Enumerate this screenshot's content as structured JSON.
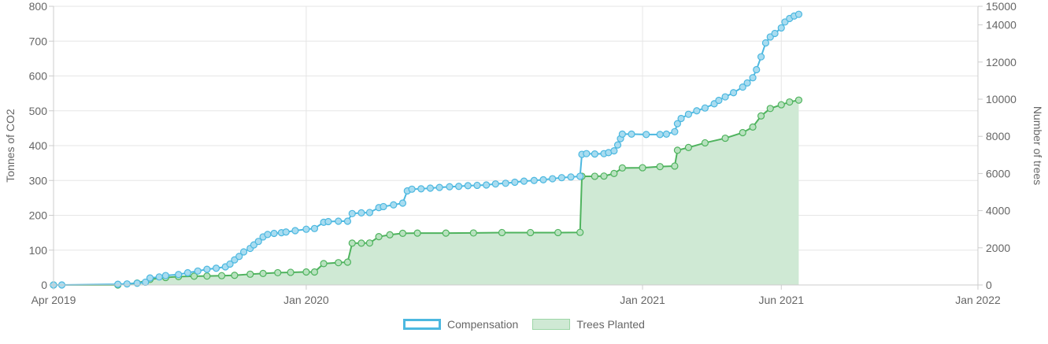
{
  "chart_data": {
    "type": "line",
    "y_left_label": "Tonnes of CO2",
    "y_right_label": "Number of trees",
    "y_left_lim": [
      0,
      800
    ],
    "y_left_ticks": [
      "0",
      "100",
      "200",
      "300",
      "400",
      "500",
      "600",
      "700",
      "800"
    ],
    "y_right_lim": [
      0,
      15000
    ],
    "y_right_ticks": [
      "0",
      "2000",
      "4000",
      "6000",
      "8000",
      "10000",
      "12000",
      "14000",
      "15000"
    ],
    "x_ticks": [
      "Apr 2019",
      "Jan 2020",
      "Jan 2021",
      "Jun 2021",
      "Jan 2022"
    ],
    "grid": true,
    "legend_position": "bottom",
    "series": [
      {
        "name": "Compensation",
        "axis": "left",
        "color": "#4cb8e0",
        "points": [
          [
            "2019-04-01",
            0
          ],
          [
            "2019-04-10",
            0
          ],
          [
            "2019-06-10",
            2
          ],
          [
            "2019-06-20",
            3
          ],
          [
            "2019-07-01",
            5
          ],
          [
            "2019-07-10",
            8
          ],
          [
            "2019-07-15",
            20
          ],
          [
            "2019-07-25",
            23
          ],
          [
            "2019-08-01",
            27
          ],
          [
            "2019-08-15",
            30
          ],
          [
            "2019-08-25",
            35
          ],
          [
            "2019-09-05",
            40
          ],
          [
            "2019-09-15",
            45
          ],
          [
            "2019-09-25",
            48
          ],
          [
            "2019-10-05",
            52
          ],
          [
            "2019-10-10",
            60
          ],
          [
            "2019-10-15",
            72
          ],
          [
            "2019-10-20",
            82
          ],
          [
            "2019-10-25",
            95
          ],
          [
            "2019-11-01",
            105
          ],
          [
            "2019-11-05",
            115
          ],
          [
            "2019-11-10",
            125
          ],
          [
            "2019-11-15",
            138
          ],
          [
            "2019-11-20",
            145
          ],
          [
            "2019-11-27",
            148
          ],
          [
            "2019-12-05",
            150
          ],
          [
            "2019-12-10",
            152
          ],
          [
            "2019-12-20",
            156
          ],
          [
            "2020-01-01",
            160
          ],
          [
            "2020-01-10",
            162
          ],
          [
            "2020-01-20",
            180
          ],
          [
            "2020-01-25",
            182
          ],
          [
            "2020-02-05",
            183
          ],
          [
            "2020-02-15",
            183
          ],
          [
            "2020-02-20",
            205
          ],
          [
            "2020-03-01",
            207
          ],
          [
            "2020-03-10",
            208
          ],
          [
            "2020-03-20",
            222
          ],
          [
            "2020-03-25",
            225
          ],
          [
            "2020-04-05",
            230
          ],
          [
            "2020-04-15",
            235
          ],
          [
            "2020-04-20",
            270
          ],
          [
            "2020-04-25",
            275
          ],
          [
            "2020-05-05",
            276
          ],
          [
            "2020-05-15",
            278
          ],
          [
            "2020-05-25",
            280
          ],
          [
            "2020-06-05",
            282
          ],
          [
            "2020-06-15",
            283
          ],
          [
            "2020-06-25",
            285
          ],
          [
            "2020-07-05",
            286
          ],
          [
            "2020-07-15",
            287
          ],
          [
            "2020-07-25",
            290
          ],
          [
            "2020-08-05",
            292
          ],
          [
            "2020-08-15",
            295
          ],
          [
            "2020-08-25",
            298
          ],
          [
            "2020-09-05",
            300
          ],
          [
            "2020-09-15",
            302
          ],
          [
            "2020-09-25",
            305
          ],
          [
            "2020-10-05",
            308
          ],
          [
            "2020-10-15",
            310
          ],
          [
            "2020-10-25",
            312
          ],
          [
            "2020-10-27",
            375
          ],
          [
            "2020-11-01",
            377
          ],
          [
            "2020-11-10",
            376
          ],
          [
            "2020-11-20",
            377
          ],
          [
            "2020-11-25",
            380
          ],
          [
            "2020-12-01",
            385
          ],
          [
            "2020-12-05",
            402
          ],
          [
            "2020-12-08",
            420
          ],
          [
            "2020-12-10",
            433
          ],
          [
            "2020-12-20",
            433
          ],
          [
            "2021-01-05",
            432
          ],
          [
            "2021-01-20",
            432
          ],
          [
            "2021-01-27",
            433
          ],
          [
            "2021-02-05",
            440
          ],
          [
            "2021-02-08",
            463
          ],
          [
            "2021-02-12",
            478
          ],
          [
            "2021-02-20",
            490
          ],
          [
            "2021-03-01",
            500
          ],
          [
            "2021-03-10",
            508
          ],
          [
            "2021-03-20",
            520
          ],
          [
            "2021-03-25",
            530
          ],
          [
            "2021-04-01",
            540
          ],
          [
            "2021-04-10",
            552
          ],
          [
            "2021-04-20",
            568
          ],
          [
            "2021-04-25",
            580
          ],
          [
            "2021-05-01",
            595
          ],
          [
            "2021-05-05",
            618
          ],
          [
            "2021-05-10",
            655
          ],
          [
            "2021-05-15",
            695
          ],
          [
            "2021-05-20",
            712
          ],
          [
            "2021-05-25",
            722
          ],
          [
            "2021-06-01",
            738
          ],
          [
            "2021-06-05",
            755
          ],
          [
            "2021-06-10",
            765
          ],
          [
            "2021-06-15",
            772
          ],
          [
            "2021-06-20",
            777
          ]
        ]
      },
      {
        "name": "Trees Planted",
        "axis": "right",
        "color": "#4fb35e",
        "fill": "#cfe9d4",
        "points": [
          [
            "2019-04-01",
            0
          ],
          [
            "2019-06-10",
            0
          ],
          [
            "2019-07-01",
            100
          ],
          [
            "2019-07-15",
            300
          ],
          [
            "2019-08-01",
            400
          ],
          [
            "2019-08-15",
            450
          ],
          [
            "2019-09-01",
            470
          ],
          [
            "2019-09-15",
            480
          ],
          [
            "2019-10-01",
            500
          ],
          [
            "2019-10-15",
            520
          ],
          [
            "2019-11-01",
            580
          ],
          [
            "2019-11-15",
            620
          ],
          [
            "2019-12-01",
            660
          ],
          [
            "2019-12-15",
            680
          ],
          [
            "2020-01-01",
            700
          ],
          [
            "2020-01-10",
            700
          ],
          [
            "2020-01-20",
            1150
          ],
          [
            "2020-02-05",
            1200
          ],
          [
            "2020-02-15",
            1230
          ],
          [
            "2020-02-20",
            2250
          ],
          [
            "2020-03-01",
            2250
          ],
          [
            "2020-03-10",
            2260
          ],
          [
            "2020-03-20",
            2600
          ],
          [
            "2020-04-01",
            2700
          ],
          [
            "2020-04-15",
            2780
          ],
          [
            "2020-05-01",
            2790
          ],
          [
            "2020-06-01",
            2790
          ],
          [
            "2020-07-01",
            2800
          ],
          [
            "2020-08-01",
            2820
          ],
          [
            "2020-09-01",
            2820
          ],
          [
            "2020-10-01",
            2820
          ],
          [
            "2020-10-25",
            2830
          ],
          [
            "2020-10-27",
            5850
          ],
          [
            "2020-11-10",
            5850
          ],
          [
            "2020-11-20",
            5860
          ],
          [
            "2020-12-01",
            6000
          ],
          [
            "2020-12-10",
            6300
          ],
          [
            "2021-01-01",
            6310
          ],
          [
            "2021-01-20",
            6370
          ],
          [
            "2021-02-05",
            6400
          ],
          [
            "2021-02-08",
            7250
          ],
          [
            "2021-02-20",
            7400
          ],
          [
            "2021-03-10",
            7650
          ],
          [
            "2021-04-01",
            7900
          ],
          [
            "2021-04-20",
            8200
          ],
          [
            "2021-05-01",
            8500
          ],
          [
            "2021-05-10",
            9100
          ],
          [
            "2021-05-20",
            9500
          ],
          [
            "2021-06-01",
            9700
          ],
          [
            "2021-06-10",
            9850
          ],
          [
            "2021-06-20",
            9950
          ]
        ]
      }
    ]
  }
}
